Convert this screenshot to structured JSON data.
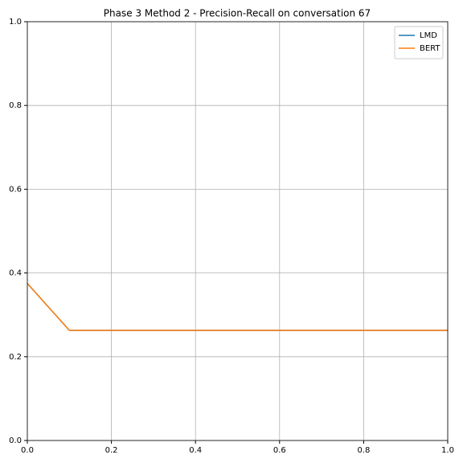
{
  "chart_data": {
    "type": "line",
    "title": "Phase 3 Method 2 - Precision-Recall on conversation 67",
    "x": [
      0,
      0.1,
      0.2,
      0.3,
      0.4,
      0.5,
      0.6,
      0.7,
      0.8,
      0.9,
      1.0
    ],
    "series": [
      {
        "name": "LMD",
        "color": "#1f77b4",
        "values": [
          0.375,
          0.263,
          0.263,
          0.263,
          0.263,
          0.263,
          0.263,
          0.263,
          0.263,
          0.263,
          0.263
        ]
      },
      {
        "name": "BERT",
        "color": "#ff7f0e",
        "values": [
          0.375,
          0.263,
          0.263,
          0.263,
          0.263,
          0.263,
          0.263,
          0.263,
          0.263,
          0.263,
          0.263
        ]
      }
    ],
    "xlim": [
      0,
      1
    ],
    "ylim": [
      0,
      1
    ],
    "xticks": [
      {
        "value": 0,
        "label": "0.0"
      },
      0.2,
      0.4,
      0.6,
      0.8,
      {
        "value": 1,
        "label": "1.0"
      }
    ],
    "yticks": [
      {
        "value": 0,
        "label": "0.0"
      },
      0.2,
      0.4,
      0.6,
      0.8,
      {
        "value": 1,
        "label": "1.0"
      }
    ],
    "grid": true,
    "legend": "upper right"
  }
}
